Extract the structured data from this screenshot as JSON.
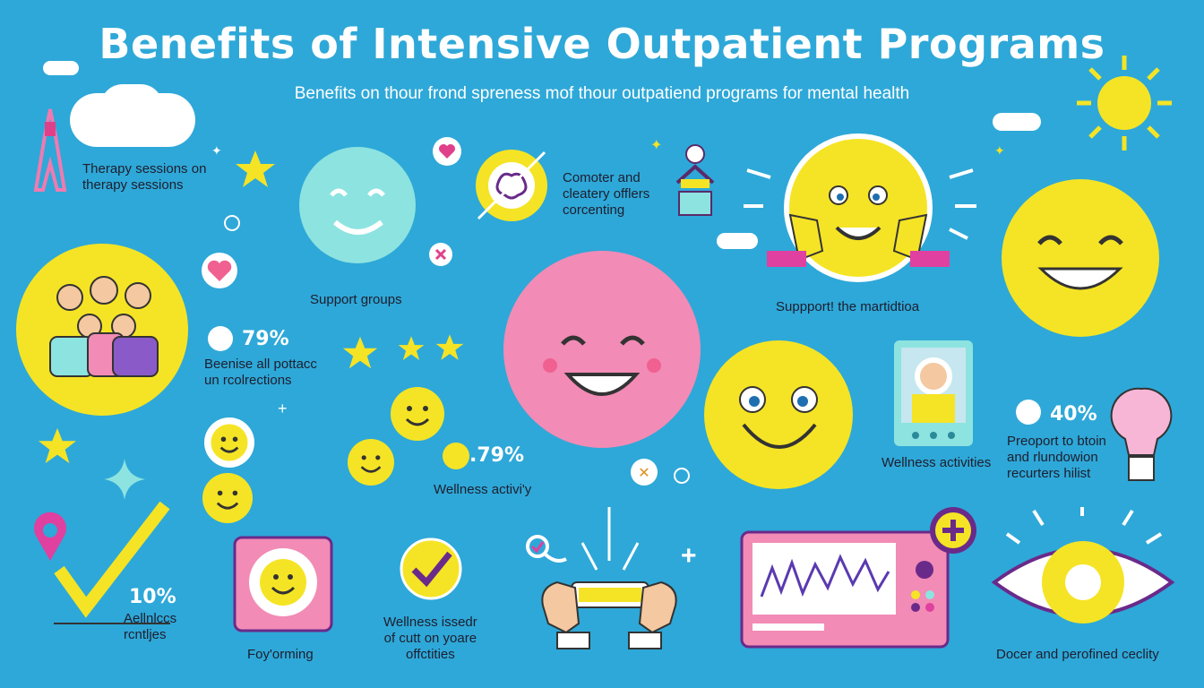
{
  "header": {
    "title": "Benefits of  Intensive Outpatient Programs",
    "subtitle": "Benefits on thour frond spreness mof thour outpatiend programs for mental health"
  },
  "labels": {
    "therapy_sessions": "Therapy sessions on therapy sessions",
    "therapy_line1": "Therapy sessions on",
    "therapy_line2": "therapy sessions",
    "computer_line1": "Comoter and",
    "computer_line2": "cleatery offlers",
    "computer_line3": "corcenting",
    "support_groups": "Support groups",
    "support_matidtioa": "Suppport! the martidtioa",
    "stat1_value": "79%",
    "stat1_line1": "Beenise all pottacc",
    "stat1_line2": "un rcolrections",
    "stat2_value": ".79%",
    "wellness_activity": "Wellness activi'y",
    "wellness_activities": "Wellness activities",
    "stat3_value": "40%",
    "stat3_line1": "Preoport to btoin",
    "stat3_line2": "and rlundowion",
    "stat3_line3": "recurters hilist",
    "stat4_value": "10%",
    "stat4_line1": "Aellnlccs",
    "stat4_line2": "rcntljes",
    "foyorming": "Foy'orming",
    "wellness_issed_line1": "Wellness issedr",
    "wellness_issed_line2": "of cutt on yoare",
    "wellness_issed_line3": "offctities",
    "doer_security": "Docer and perofined ceclity"
  },
  "icons": [
    "cloud-icon",
    "sun-icon",
    "tower-icon",
    "star-icon",
    "heart-icon",
    "brain-icon",
    "meditation-icon",
    "smiley-icon",
    "check-icon",
    "lightbulb-icon",
    "map-pin-icon",
    "phone-icon",
    "monitor-icon",
    "eye-icon",
    "plus-icon",
    "magnifier-icon"
  ],
  "colors": {
    "background": "#2ea8d8",
    "yellow": "#f5e425",
    "pink": "#f28bb5",
    "mint": "#8de3e0",
    "magenta": "#e040a0",
    "purple": "#6a2a8a"
  }
}
